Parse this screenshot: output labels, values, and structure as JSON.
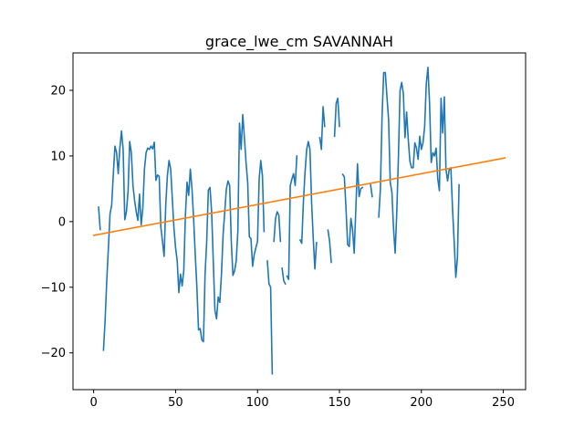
{
  "chart_data": {
    "type": "line",
    "title": "grace_lwe_cm SAVANNAH",
    "xlabel": "",
    "ylabel": "",
    "xlim": [
      -12.6,
      263.6
    ],
    "ylim": [
      -25.6,
      25.7
    ],
    "xticks": [
      0,
      50,
      100,
      150,
      200,
      250
    ],
    "yticks": [
      -20,
      -10,
      0,
      10,
      20
    ],
    "grid": false,
    "series": [
      {
        "color": "#1f77b4",
        "values": [
          [
            3,
            2.2
          ],
          [
            4,
            -1.2
          ],
          null,
          [
            6,
            -19.6
          ],
          [
            7,
            -15
          ],
          [
            8,
            -9
          ],
          [
            9,
            -4
          ],
          [
            10,
            1.2
          ],
          [
            11,
            2.5
          ],
          [
            12,
            7.2
          ],
          [
            13,
            11.5
          ],
          [
            14,
            10.5
          ],
          [
            15,
            7.3
          ],
          [
            16,
            11.2
          ],
          [
            17,
            13.8
          ],
          [
            18,
            11
          ],
          [
            19,
            0.3
          ],
          [
            20,
            1.5
          ],
          [
            21,
            4.6
          ],
          [
            22,
            12.2
          ],
          [
            23,
            10.5
          ],
          [
            24,
            5.5
          ],
          [
            25,
            3.2
          ],
          [
            26,
            1.5
          ],
          [
            27,
            0.2
          ],
          [
            28,
            4.2
          ],
          [
            29,
            -0.5
          ],
          [
            30,
            2
          ],
          [
            31,
            8
          ],
          [
            32,
            10.5
          ],
          [
            33,
            11.2
          ],
          [
            34,
            11
          ],
          [
            35,
            11.5
          ],
          [
            36,
            11.1
          ],
          [
            37,
            12.1
          ],
          [
            38,
            6.3
          ],
          [
            39,
            7.1
          ],
          [
            40,
            6.9
          ],
          [
            41,
            -0.8
          ],
          [
            42,
            -3
          ],
          [
            43,
            -5.3
          ],
          [
            44,
            2.5
          ],
          [
            45,
            7
          ],
          [
            46,
            9.3
          ],
          [
            47,
            8
          ],
          [
            48,
            3.5
          ],
          [
            49,
            -1
          ],
          [
            50,
            -4
          ],
          [
            51,
            -6
          ],
          [
            52,
            -10.8
          ],
          [
            53,
            -8
          ],
          [
            54,
            -9.8
          ],
          [
            55,
            -7.5
          ],
          [
            56,
            1
          ],
          [
            57,
            6
          ],
          [
            58,
            4
          ],
          [
            59,
            8
          ],
          [
            60,
            5
          ],
          [
            61,
            0.5
          ],
          [
            62,
            -5
          ],
          [
            63,
            -10
          ],
          [
            64,
            -16.5
          ],
          [
            65,
            -16.3
          ],
          [
            66,
            -18
          ],
          [
            67,
            -18.3
          ],
          [
            68,
            -8
          ],
          [
            69,
            -3
          ],
          [
            70,
            4.8
          ],
          [
            71,
            5.2
          ],
          [
            72,
            1.5
          ],
          [
            73,
            -6
          ],
          [
            74,
            -13.5
          ],
          [
            75,
            -14.8
          ],
          [
            76,
            -11.5
          ],
          [
            77,
            -12.3
          ],
          [
            78,
            -8
          ],
          [
            79,
            -2
          ],
          [
            80,
            1.5
          ],
          [
            81,
            5
          ],
          [
            82,
            6.2
          ],
          [
            83,
            5.5
          ],
          [
            84,
            -3
          ],
          [
            85,
            -8.2
          ],
          [
            86,
            -7.5
          ],
          [
            87,
            -6
          ],
          [
            88,
            -1.5
          ],
          [
            89,
            15
          ],
          [
            90,
            11
          ],
          [
            91,
            16.3
          ],
          [
            92,
            12.8
          ],
          [
            93,
            9
          ],
          [
            94,
            6
          ],
          [
            95,
            -2.3
          ],
          [
            96,
            -2.6
          ],
          [
            97,
            -6.8
          ],
          [
            98,
            -5
          ],
          [
            99,
            -4
          ],
          [
            100,
            -3
          ],
          [
            101,
            6.5
          ],
          [
            102,
            9.3
          ],
          [
            103,
            7
          ],
          [
            104,
            -1.5
          ],
          null,
          [
            106,
            -6
          ],
          [
            107,
            -9.5
          ],
          [
            108,
            -10
          ],
          [
            109,
            -23.2
          ],
          null,
          [
            110,
            -3
          ],
          [
            111,
            0.5
          ],
          [
            112,
            1.5
          ],
          [
            113,
            1
          ],
          [
            114,
            -3
          ],
          null,
          [
            115,
            -7.1
          ],
          [
            116,
            -9
          ],
          [
            117,
            -9.5
          ],
          null,
          [
            118,
            -8.3
          ],
          [
            119,
            -8.8
          ],
          [
            120,
            5.5
          ],
          [
            121,
            6.5
          ],
          [
            122,
            7.3
          ],
          [
            123,
            5.5
          ],
          [
            124,
            10
          ],
          null,
          [
            126,
            -2.8
          ],
          [
            127,
            -3.3
          ],
          [
            128,
            3
          ],
          [
            129,
            7.5
          ],
          [
            130,
            11
          ],
          [
            131,
            12.2
          ],
          [
            132,
            11
          ],
          [
            133,
            3
          ],
          [
            134,
            -2.5
          ],
          [
            135,
            -7.2
          ],
          [
            136,
            -3.2
          ],
          null,
          [
            138,
            12.8
          ],
          [
            139,
            11
          ],
          [
            140,
            17.5
          ],
          [
            141,
            14.5
          ],
          null,
          [
            143,
            -1.3
          ],
          [
            144,
            -3
          ],
          [
            145,
            -6.2
          ],
          null,
          [
            147,
            13
          ],
          [
            148,
            18
          ],
          [
            149,
            18.8
          ],
          [
            150,
            14.5
          ],
          null,
          [
            152,
            7.2
          ],
          [
            153,
            6.8
          ],
          [
            154,
            2
          ],
          [
            155,
            -3.5
          ],
          [
            156,
            -3.8
          ],
          [
            157,
            0.5
          ],
          [
            158,
            -1.2
          ],
          [
            159,
            -4.8
          ],
          [
            160,
            2
          ],
          [
            161,
            8.8
          ],
          [
            162,
            3.8
          ],
          [
            163,
            5
          ],
          [
            164,
            5.2
          ],
          null,
          [
            169,
            5.6
          ],
          [
            170,
            3.8
          ],
          null,
          [
            174,
            0.7
          ],
          [
            175,
            5
          ],
          [
            176,
            16
          ],
          [
            177,
            22.7
          ],
          [
            178,
            22.7
          ],
          [
            179,
            19
          ],
          [
            180,
            15.5
          ],
          [
            181,
            6
          ],
          [
            182,
            4.5
          ],
          [
            183,
            -1
          ],
          [
            184,
            -4.8
          ],
          [
            185,
            1.5
          ],
          [
            186,
            10
          ],
          [
            187,
            20
          ],
          [
            188,
            21.2
          ],
          [
            189,
            19.5
          ],
          [
            190,
            12.8
          ],
          [
            191,
            16.7
          ],
          [
            192,
            12.5
          ],
          [
            193,
            9.2
          ],
          [
            194,
            8.2
          ],
          [
            195,
            8.2
          ],
          [
            196,
            12
          ],
          [
            197,
            11.2
          ],
          [
            198,
            9.5
          ],
          [
            199,
            13
          ],
          [
            200,
            11
          ],
          [
            201,
            12
          ],
          [
            202,
            14.5
          ],
          [
            203,
            21
          ],
          [
            204,
            23.5
          ],
          [
            205,
            18
          ],
          [
            206,
            9
          ],
          [
            207,
            10.5
          ],
          [
            208,
            10
          ],
          [
            209,
            11.2
          ],
          [
            210,
            6.5
          ],
          [
            211,
            4.7
          ],
          [
            212,
            18.8
          ],
          [
            213,
            13.5
          ],
          [
            214,
            19
          ],
          [
            215,
            8
          ],
          [
            216,
            6.2
          ],
          [
            217,
            8
          ],
          [
            218,
            8.2
          ],
          [
            219,
            2
          ],
          [
            220,
            -3
          ],
          [
            221,
            -8.5
          ],
          [
            222,
            -5.5
          ],
          [
            223,
            5.6
          ]
        ]
      },
      {
        "color": "#ff7f0e",
        "values": [
          [
            0,
            -2.1
          ],
          [
            251,
            9.7
          ]
        ]
      }
    ]
  }
}
